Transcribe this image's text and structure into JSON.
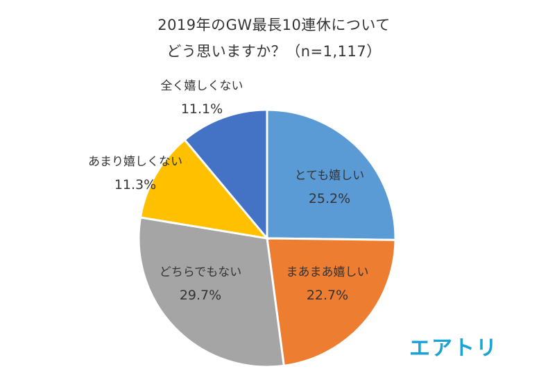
{
  "title_line1": "2019年のGW最長10連休について",
  "title_line2": "どう思いますか？（n=1,117）",
  "brand": "エアトリ",
  "chart_data": {
    "type": "pie",
    "title": "2019年のGW最長10連休について どう思いますか？（n=1,117）",
    "start_angle_deg": 0,
    "direction": "clockwise",
    "slices": [
      {
        "label": "とても嬉しい",
        "value": 25.2,
        "display": "25.2%",
        "color": "#5B9BD5",
        "label_color": "#333333"
      },
      {
        "label": "まあまあ嬉しい",
        "value": 22.7,
        "display": "22.7%",
        "color": "#ED7D31",
        "label_color": "#333333"
      },
      {
        "label": "どちらでもない",
        "value": 29.7,
        "display": "29.7%",
        "color": "#A5A5A5",
        "label_color": "#333333"
      },
      {
        "label": "あまり嬉しくない",
        "value": 11.3,
        "display": "11.3%",
        "color": "#FFC000",
        "label_color": "#333333"
      },
      {
        "label": "全く嬉しくない",
        "value": 11.1,
        "display": "11.1%",
        "color": "#4472C4",
        "label_color": "#333333"
      }
    ],
    "legend": "none"
  }
}
